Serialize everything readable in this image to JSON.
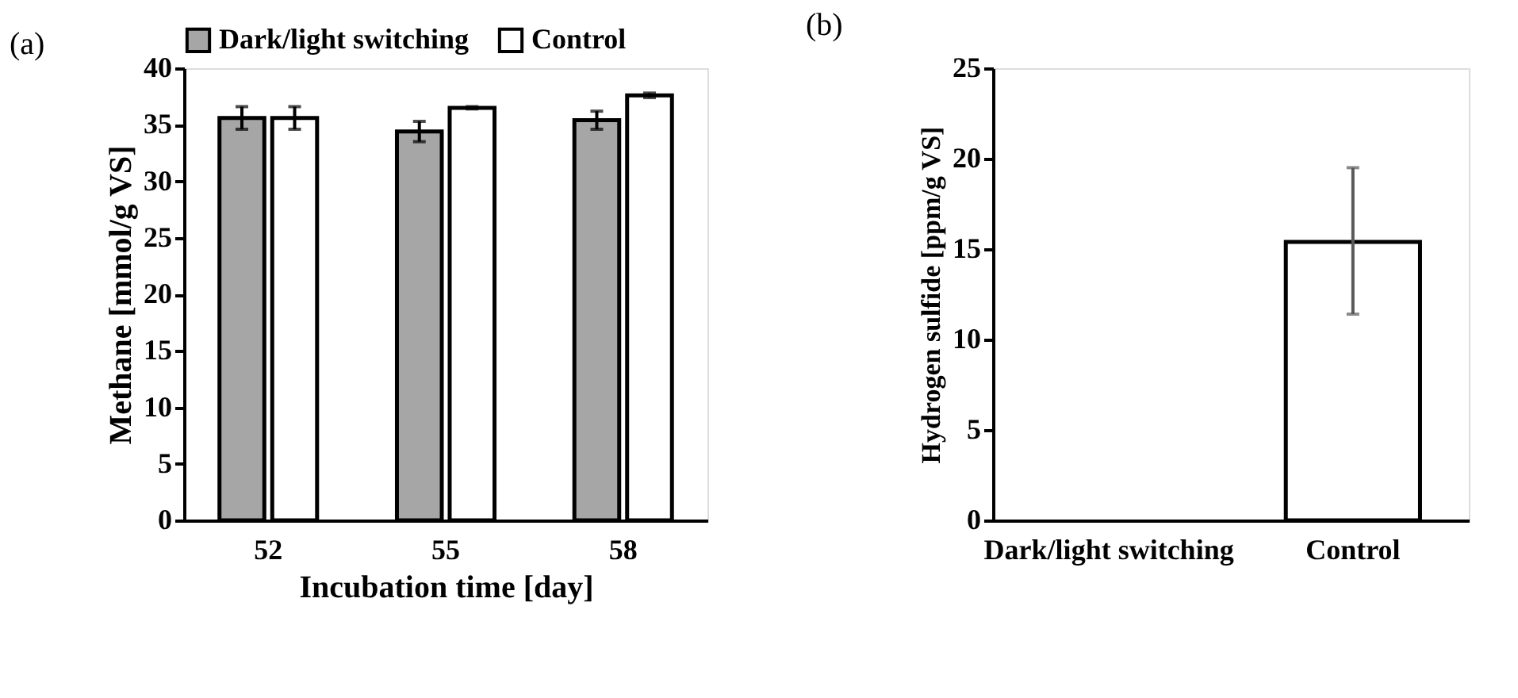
{
  "chart_data": [
    {
      "type": "bar",
      "title": "(a)",
      "xlabel": "Incubation time [day]",
      "ylabel": "Methane [mmol/g VS]",
      "categories": [
        "52",
        "55",
        "58"
      ],
      "ylim": [
        0,
        40
      ],
      "yticks": [
        0,
        5,
        10,
        15,
        20,
        25,
        30,
        35,
        40
      ],
      "grid": false,
      "legend": "top",
      "series": [
        {
          "name": "Dark/light switching",
          "color": "#a6a6a6",
          "values": [
            35.6,
            34.4,
            35.4
          ],
          "errors": [
            1.0,
            0.9,
            0.8
          ]
        },
        {
          "name": "Control",
          "color": "#ffffff",
          "values": [
            35.6,
            36.5,
            37.6
          ],
          "errors": [
            1.0,
            0.1,
            0.2
          ]
        }
      ]
    },
    {
      "type": "bar",
      "title": "(b)",
      "ylabel": "Hydrogen sulfide [ppm/g VS]",
      "categories": [
        "Dark/light switching",
        "Control"
      ],
      "ylim": [
        0,
        25
      ],
      "yticks": [
        0,
        5,
        10,
        15,
        20,
        25
      ],
      "grid": false,
      "legend": false,
      "series": [
        {
          "color": "#ffffff",
          "values": [
            0,
            15.4
          ],
          "errors": [
            null,
            [
              11.4,
              19.5
            ]
          ]
        }
      ]
    }
  ]
}
